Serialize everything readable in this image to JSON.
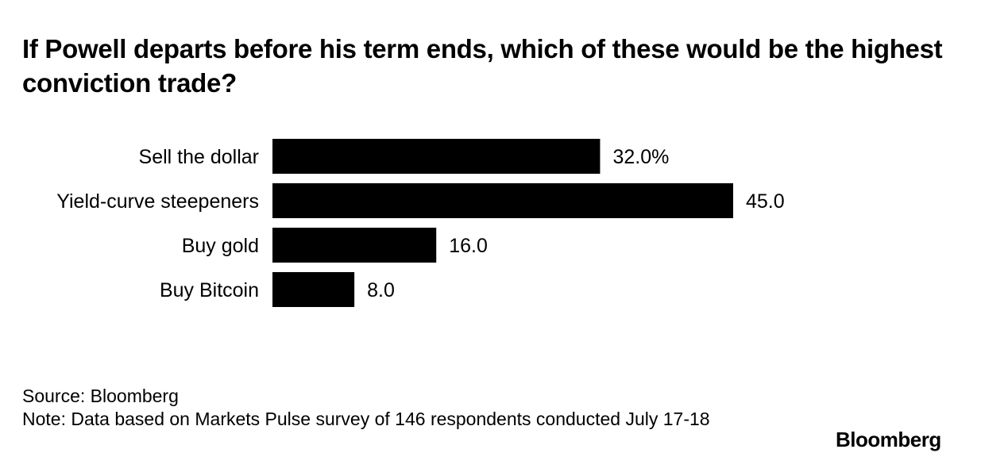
{
  "title": "If Powell departs before his term ends, which of these would be the highest conviction trade?",
  "chart_data": {
    "type": "bar",
    "orientation": "horizontal",
    "title": "If Powell departs before his term ends, which of these would be the highest conviction trade?",
    "categories": [
      "Sell the dollar",
      "Yield-curve steepeners",
      "Buy gold",
      "Buy Bitcoin"
    ],
    "values": [
      32.0,
      45.0,
      16.0,
      8.0
    ],
    "value_labels": [
      "32.0%",
      "45.0",
      "16.0",
      "8.0"
    ],
    "unit": "%",
    "xlim": [
      0,
      45
    ],
    "xlabel": "",
    "ylabel": "",
    "grid": false,
    "legend": "none",
    "bar_color": "#000000"
  },
  "footer": {
    "source": "Source: Bloomberg",
    "note": "Note: Data based on Markets Pulse survey of 146 respondents conducted July 17-18"
  },
  "branding": {
    "logo_text": "Bloomberg"
  }
}
